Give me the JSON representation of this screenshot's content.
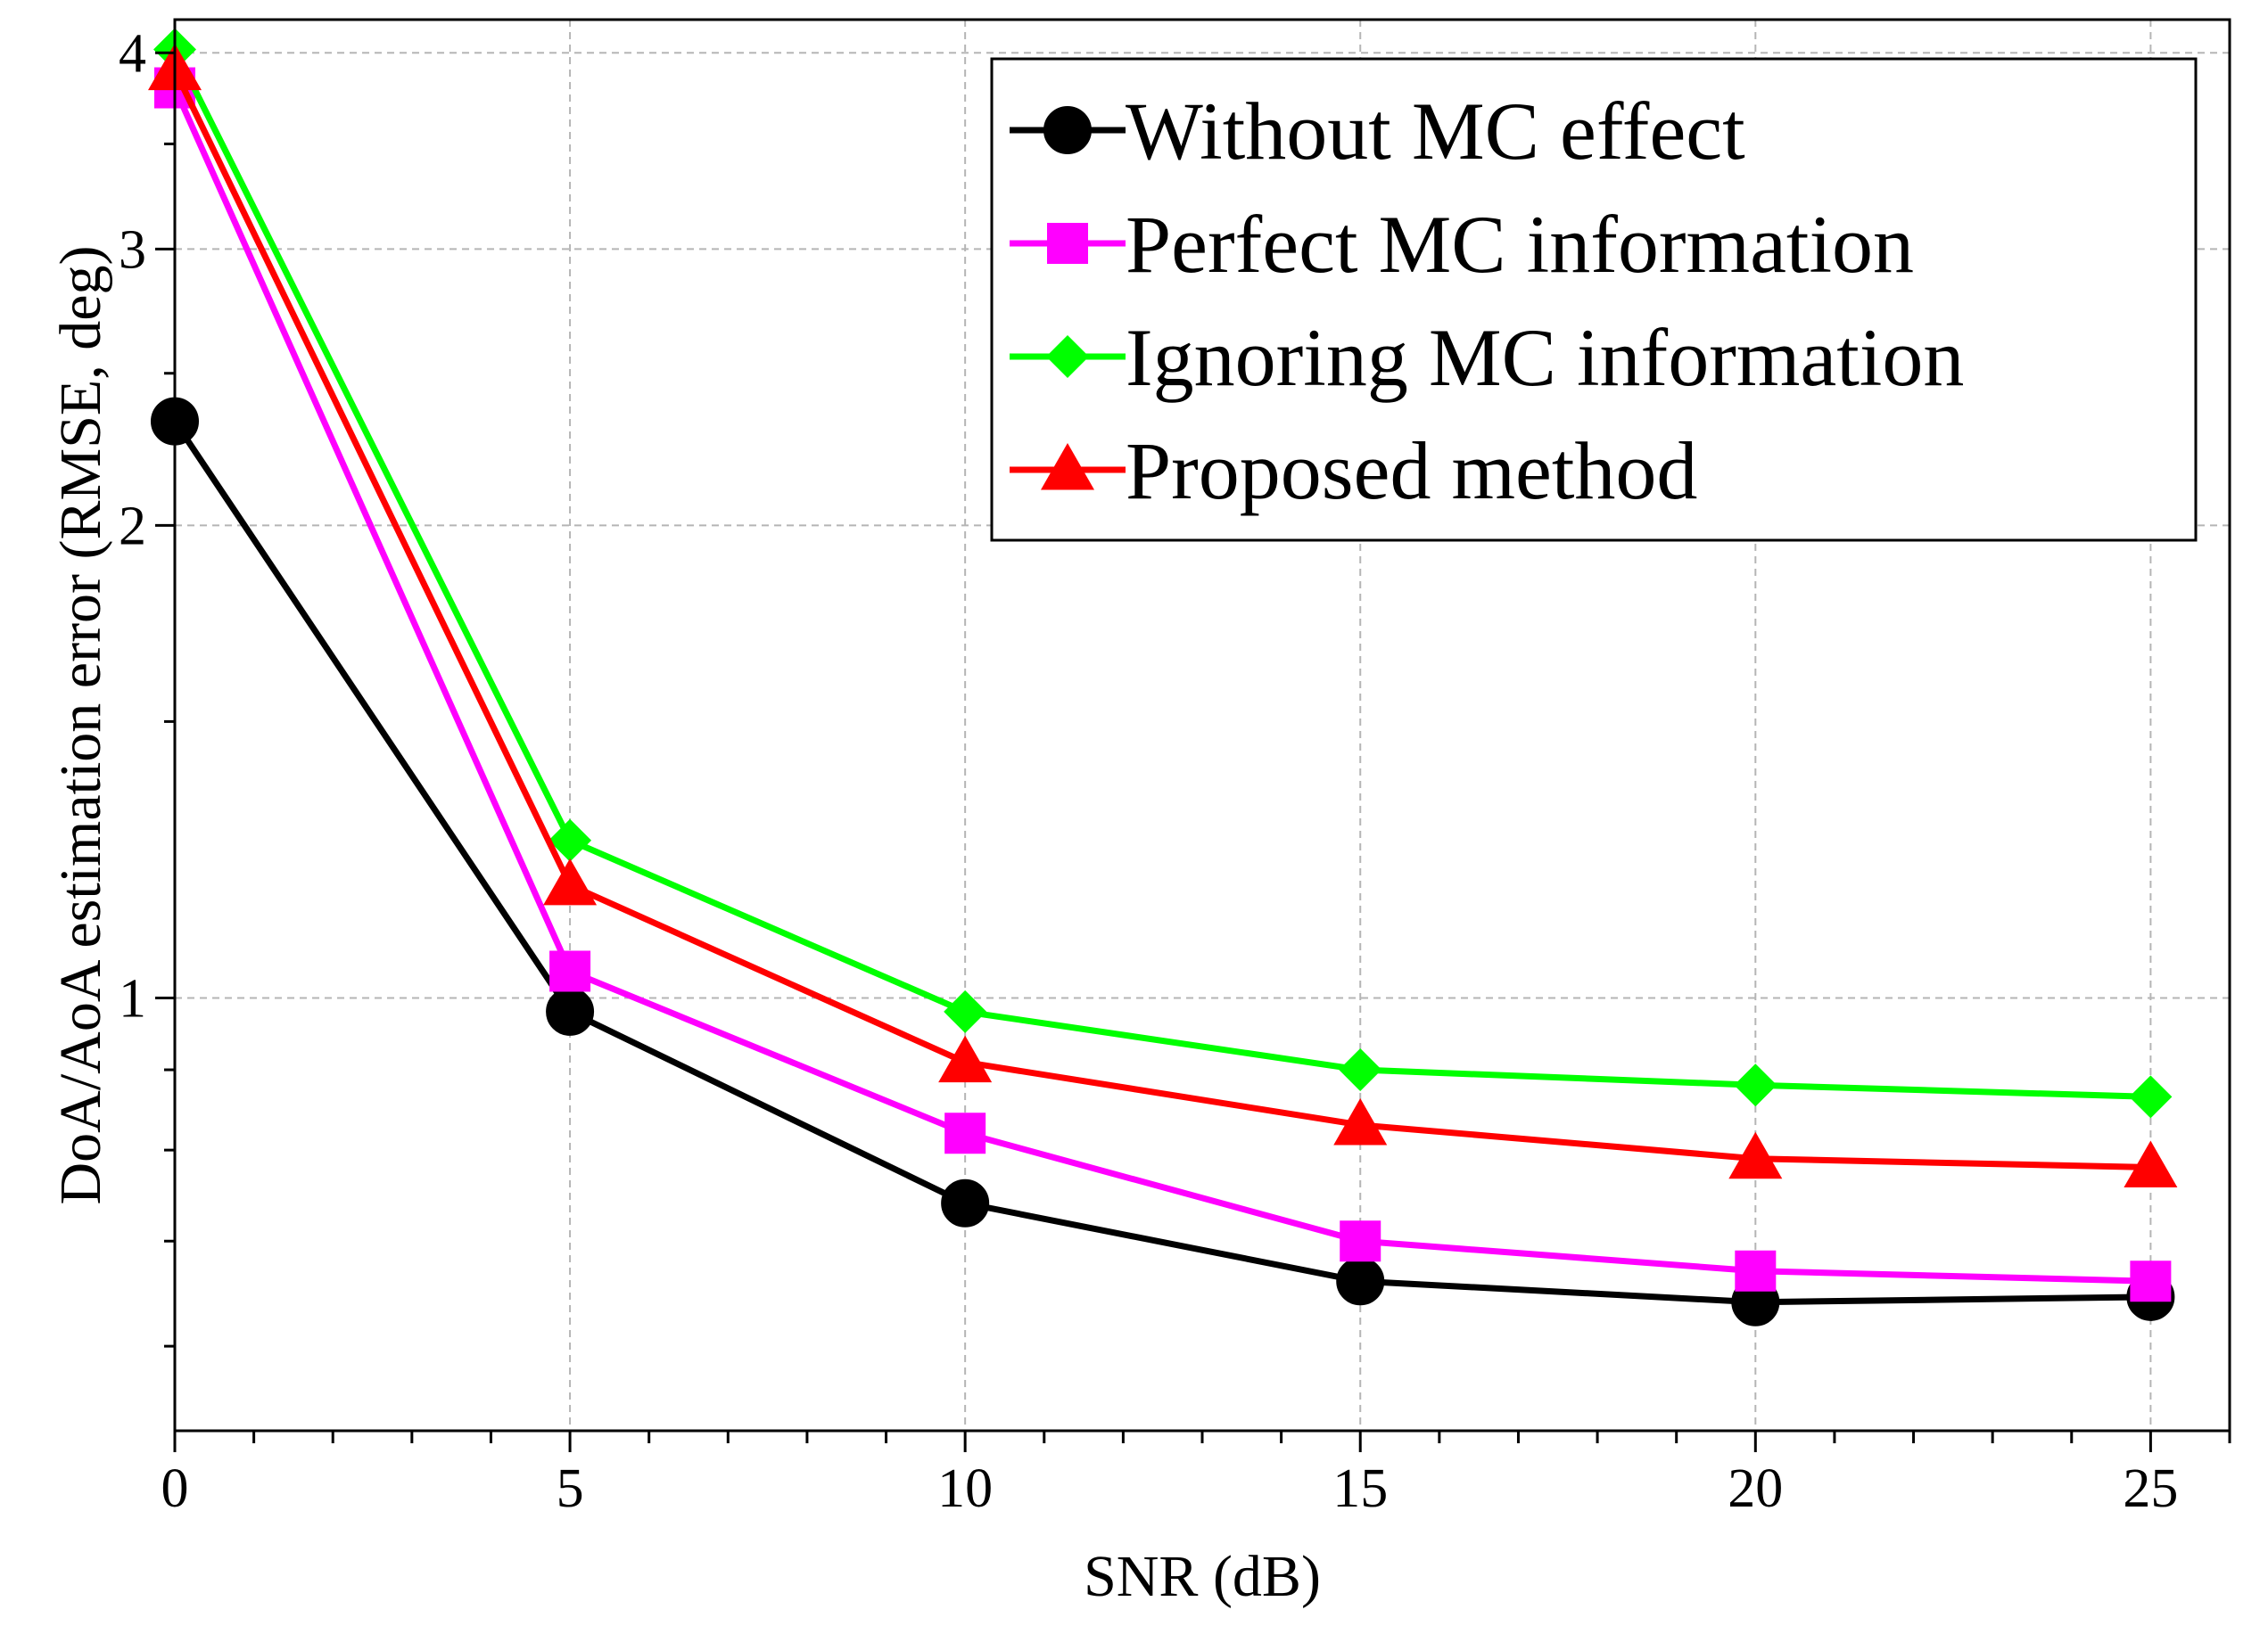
{
  "chart_data": {
    "type": "line",
    "title": "",
    "xlabel": "SNR (dB)",
    "ylabel": "DoA/AoA estimation error (RMSE, deg)",
    "x": [
      0,
      5,
      10,
      15,
      20,
      25
    ],
    "xlim": [
      0,
      26
    ],
    "ylim": [
      0.53,
      4.2
    ],
    "yscale": "log",
    "xticks": [
      0,
      5,
      10,
      15,
      20,
      25
    ],
    "xtick_labels": [
      "0",
      "5",
      "10",
      "15",
      "20",
      "25"
    ],
    "yticks": [
      1,
      2,
      3,
      4
    ],
    "ytick_labels": [
      "1",
      "2",
      "3",
      "4"
    ],
    "grid": true,
    "legend_position": "top-right",
    "series": [
      {
        "name": "Without MC effect",
        "color": "#000000",
        "marker": "circle",
        "values": [
          2.33,
          0.98,
          0.74,
          0.66,
          0.64,
          0.645
        ]
      },
      {
        "name": "Perfect MC information",
        "color": "#ff00ff",
        "marker": "square",
        "values": [
          3.8,
          1.04,
          0.82,
          0.7,
          0.67,
          0.66
        ]
      },
      {
        "name": "Ignoring MC information",
        "color": "#00ff00",
        "marker": "diamond",
        "values": [
          4.02,
          1.26,
          0.98,
          0.9,
          0.88,
          0.865
        ]
      },
      {
        "name": "Proposed method",
        "color": "#ff0000",
        "marker": "triangle",
        "values": [
          3.9,
          1.18,
          0.91,
          0.83,
          0.79,
          0.78
        ]
      }
    ]
  }
}
